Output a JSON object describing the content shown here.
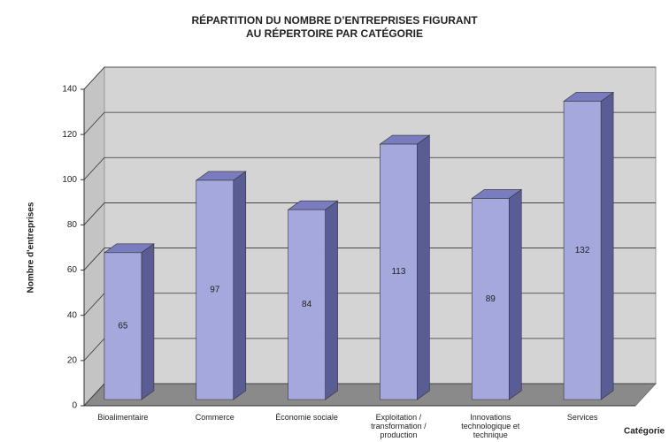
{
  "chart_data": {
    "type": "bar3d",
    "title": [
      "RÉPARTITION DU NOMBRE D’ENTREPRISES FIGURANT",
      "AU RÉPERTOIRE PAR CATÉGORIE"
    ],
    "y_label": "Nombre d'entreprises",
    "x_label": "Catégorie",
    "categories": [
      "Bioalimentaire",
      "Commerce",
      "Économie sociale",
      "Exploitation / transformation / production",
      "Innovations technologique et technique",
      "Services"
    ],
    "values": [
      65,
      97,
      84,
      113,
      89,
      132
    ],
    "color": "#a4a8dc",
    "ylim": [
      0,
      140
    ],
    "yticks": [
      0,
      20,
      40,
      60,
      80,
      100,
      120,
      140
    ],
    "grid": true
  }
}
